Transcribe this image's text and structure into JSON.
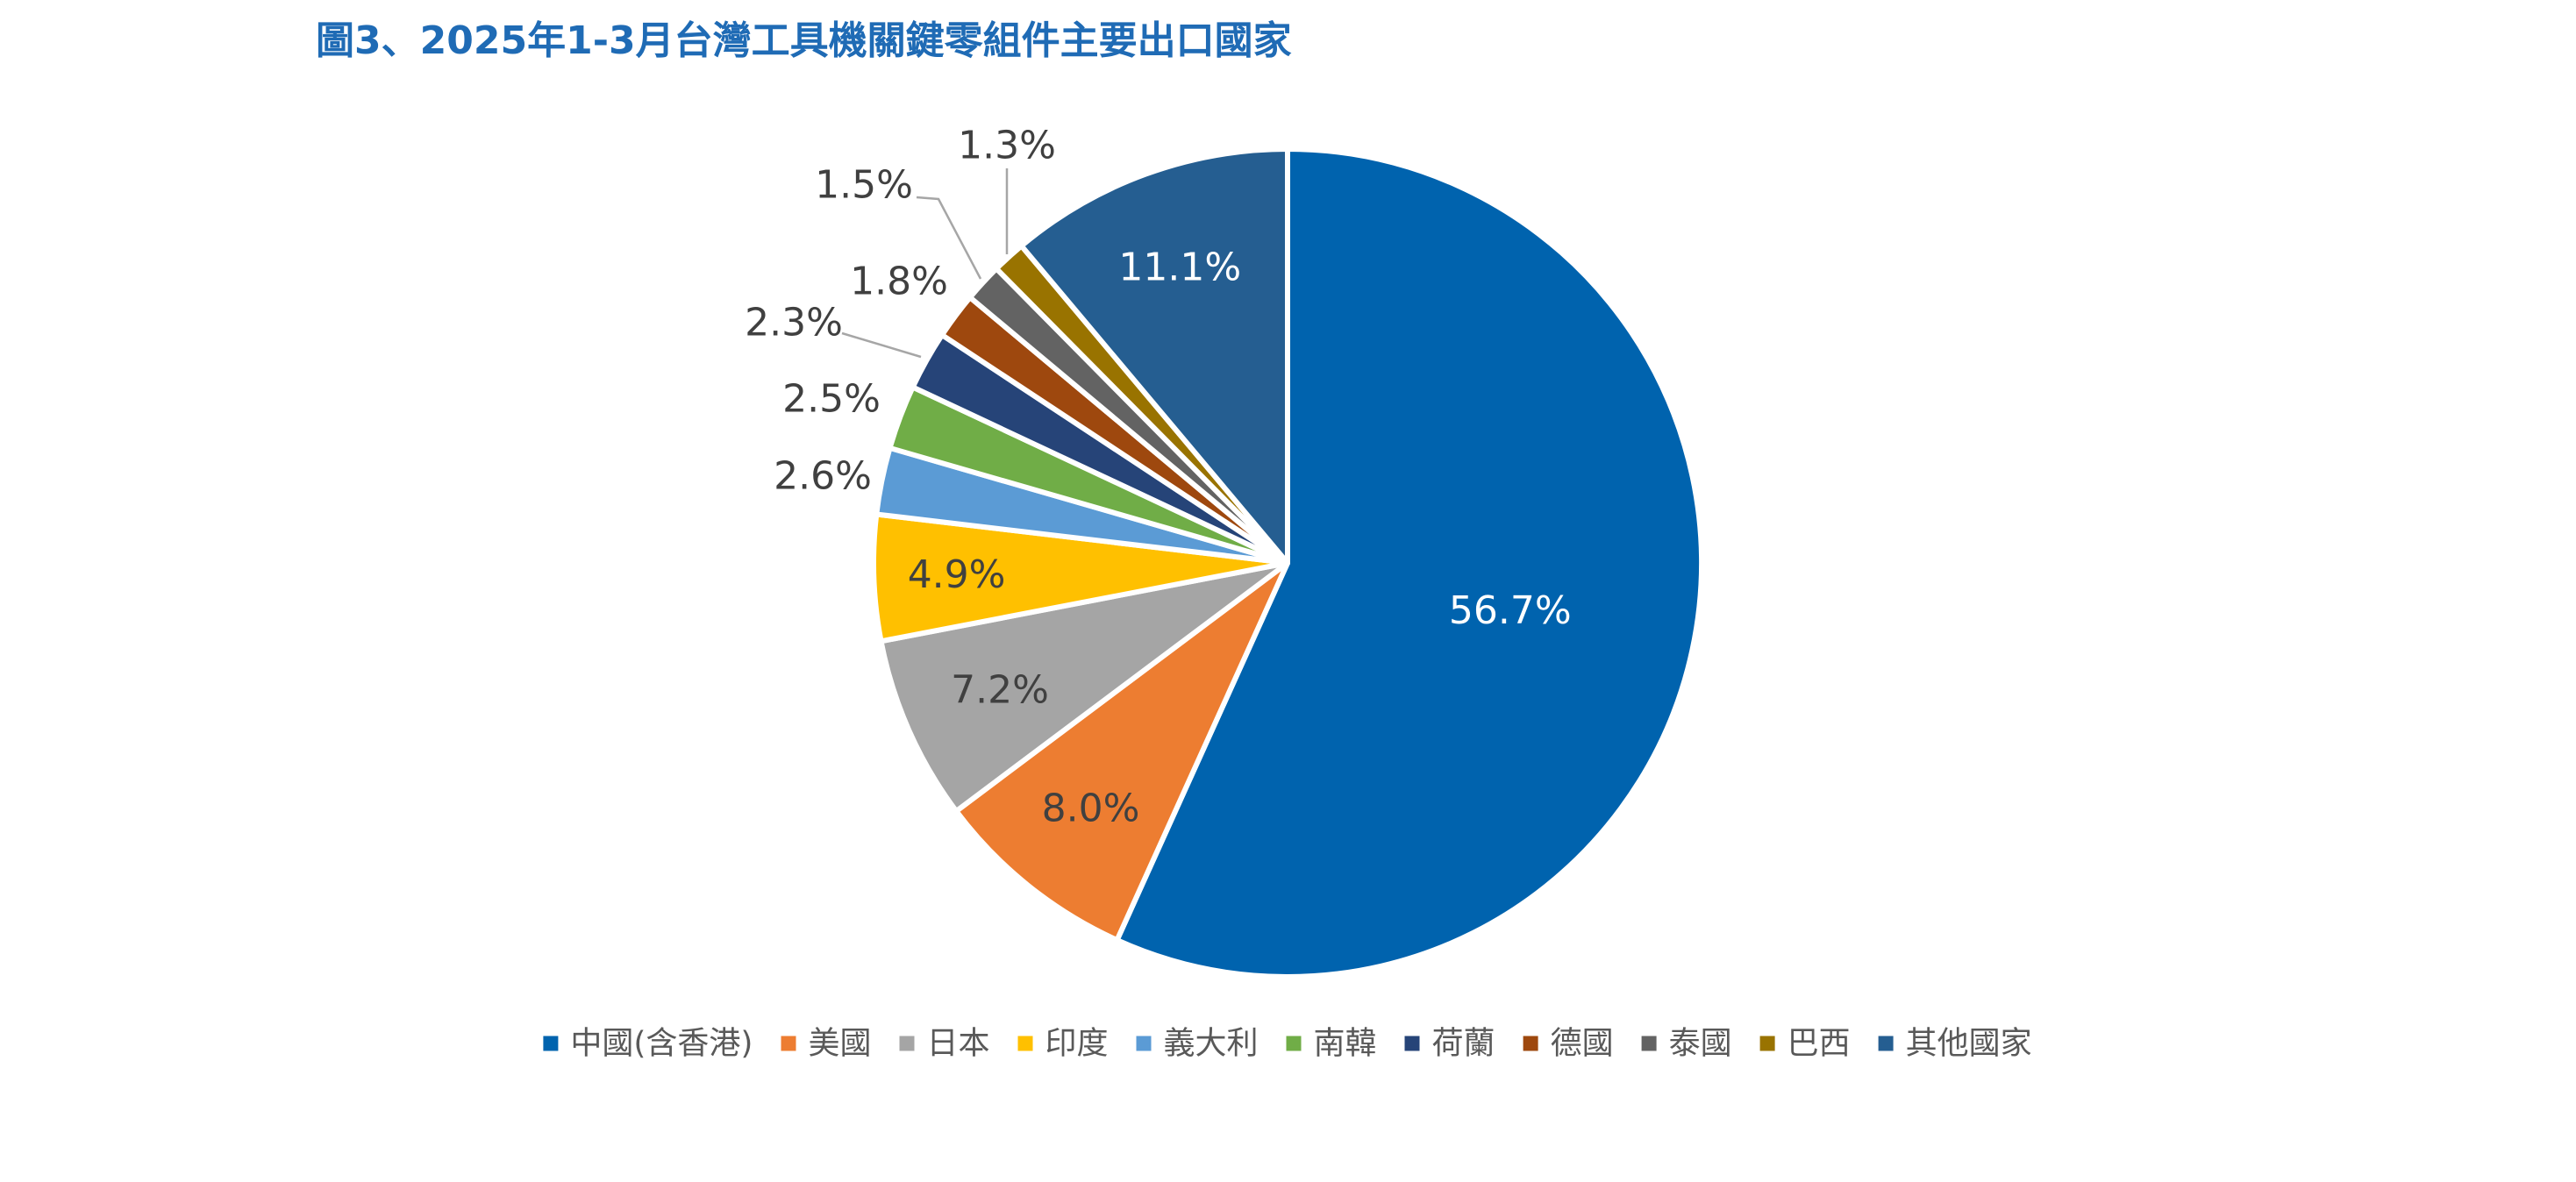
{
  "chart_data": {
    "type": "pie",
    "title": "圖3、2025年1-3月台灣工具機關鍵零組件主要出口國家",
    "unit": "%",
    "categories": [
      "中國(含香港)",
      "美國",
      "日本",
      "印度",
      "義大利",
      "南韓",
      "荷蘭",
      "德國",
      "泰國",
      "巴西",
      "其他國家"
    ],
    "values": [
      56.7,
      8.0,
      7.2,
      4.9,
      2.6,
      2.5,
      2.3,
      1.8,
      1.5,
      1.3,
      11.1
    ],
    "labels": [
      "56.7%",
      "8.0%",
      "7.2%",
      "4.9%",
      "2.6%",
      "2.5%",
      "2.3%",
      "1.8%",
      "1.5%",
      "1.3%",
      "11.1%"
    ],
    "colors": [
      "#0063AE",
      "#ED7D31",
      "#A5A5A5",
      "#FFC000",
      "#5B9BD5",
      "#70AD47",
      "#264478",
      "#9E480E",
      "#636363",
      "#997300",
      "#255E91"
    ],
    "label_colors": [
      "#FFFFFF",
      "#404040",
      "#404040",
      "#404040",
      "#404040",
      "#404040",
      "#404040",
      "#404040",
      "#404040",
      "#404040",
      "#FFFFFF"
    ],
    "start_angle_deg": 0,
    "direction": "clockwise",
    "legend_position": "bottom"
  }
}
